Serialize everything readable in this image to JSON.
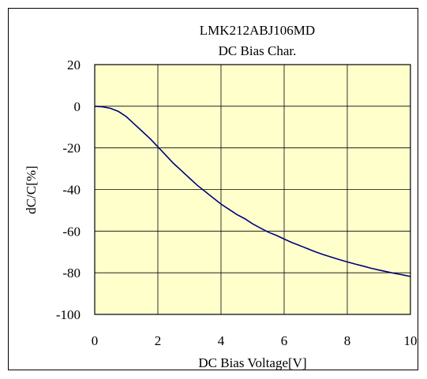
{
  "chart_data": {
    "type": "line",
    "title": "LMK212ABJ106MD",
    "subtitle": "DC Bias Char.",
    "xlabel": "DC Bias Voltage[V]",
    "ylabel": "dC/C[%]",
    "xlim": [
      0,
      10
    ],
    "ylim": [
      -100,
      20
    ],
    "xticks": [
      0,
      2,
      4,
      6,
      8,
      10
    ],
    "yticks": [
      20,
      0,
      -20,
      -40,
      -60,
      -80,
      -100
    ],
    "grid": true,
    "series": [
      {
        "x": [
          0,
          0.25,
          0.5,
          0.75,
          1.0,
          1.25,
          1.5,
          1.75,
          2.0,
          2.25,
          2.5,
          2.75,
          3.0,
          3.25,
          3.5,
          3.75,
          4.0,
          4.25,
          4.5,
          4.75,
          5.0,
          5.25,
          5.5,
          5.75,
          6.0,
          6.25,
          6.5,
          6.75,
          7.0,
          7.25,
          7.5,
          7.75,
          8.0,
          8.25,
          8.5,
          8.75,
          9.0,
          9.25,
          9.5,
          9.75,
          10.0
        ],
        "y": [
          0,
          -0.3,
          -1.0,
          -2.5,
          -5.0,
          -8.5,
          -12.0,
          -15.5,
          -19.5,
          -23.5,
          -27.5,
          -31.0,
          -34.5,
          -38.0,
          -41.0,
          -44.0,
          -47.0,
          -49.5,
          -52.0,
          -54.0,
          -56.5,
          -58.5,
          -60.5,
          -62.0,
          -63.8,
          -65.5,
          -67.0,
          -68.5,
          -70.0,
          -71.3,
          -72.5,
          -73.7,
          -74.8,
          -75.8,
          -76.8,
          -77.8,
          -78.7,
          -79.5,
          -80.3,
          -81.0,
          -81.8
        ]
      }
    ],
    "colors": {
      "plot_background": "#ffffcc",
      "line": "#000080",
      "grid": "#000000",
      "frame": "#000000"
    }
  }
}
